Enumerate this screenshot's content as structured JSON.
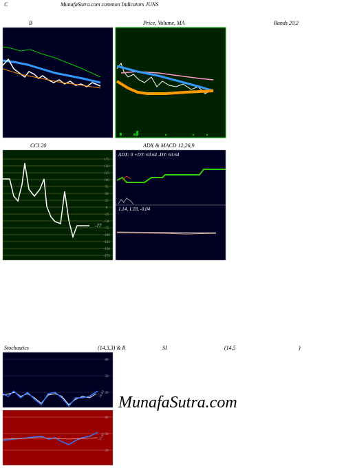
{
  "header": {
    "left": "C",
    "title": "MunafaSutra.com common Indicators JUNS"
  },
  "panels": {
    "bollinger": {
      "label_left": "B",
      "label_mid": "Price, Volume, MA",
      "label_right": "Bands 20,2"
    },
    "cci": {
      "title": "CCI 20",
      "ticks": [
        175,
        150,
        125,
        100,
        75,
        50,
        25,
        0,
        -25,
        -50,
        -75,
        -100,
        -125,
        -150,
        -175
      ],
      "value_label": "-77"
    },
    "adx": {
      "title": "ADX & MACD 12,26,9",
      "adx_text": "ADX: 0 +DY: 63.64 -DY: 63.64",
      "macd_text": "1.14, 1.18, -0.04"
    },
    "stochastics": {
      "title": "Stochastics",
      "params": "(14,3,3) & R",
      "ticks": [
        80,
        50,
        20
      ],
      "value_label": "26.63"
    },
    "rsi": {
      "title": "SI",
      "params": "(14,5",
      "close": ")",
      "ticks": [
        80,
        50,
        20
      ],
      "value_label": "53.45"
    }
  },
  "watermark": "MunafaSutra.com"
}
